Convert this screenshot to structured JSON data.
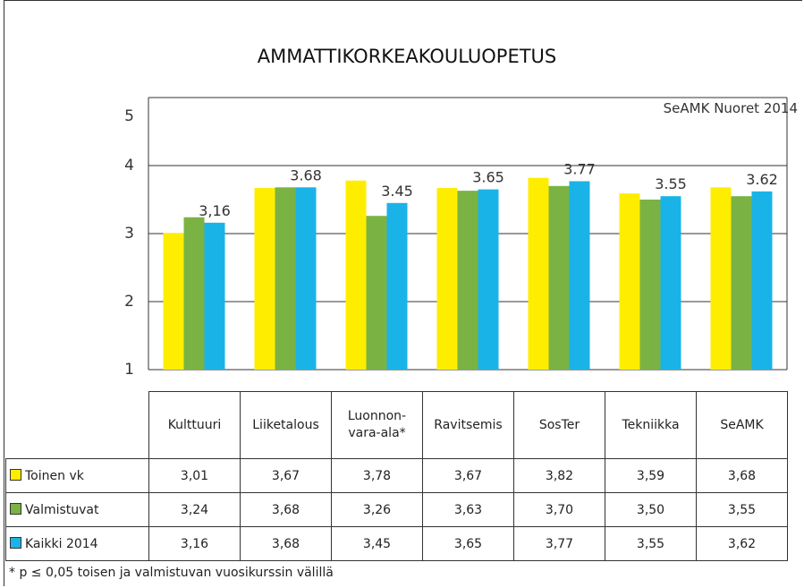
{
  "chart_data": {
    "type": "bar",
    "title": "AMMATTIKORKEAKOULUOPETUS",
    "subtitle": "SeAMK Nuoret 2014",
    "categories": [
      "Kulttuuri",
      "Liiketalous",
      "Luonnon-vara-ala*",
      "Ravitsemis",
      "SosTer",
      "Tekniikka",
      "SeAMK"
    ],
    "series": [
      {
        "name": "Toinen vk",
        "color": "#ffed00",
        "values": [
          3.01,
          3.67,
          3.78,
          3.67,
          3.82,
          3.59,
          3.68
        ],
        "value_labels": [
          "3,01",
          "3,67",
          "3,78",
          "3,67",
          "3,82",
          "3,59",
          "3,68"
        ]
      },
      {
        "name": "Valmistuvat",
        "color": "#7ab344",
        "values": [
          3.24,
          3.68,
          3.26,
          3.63,
          3.7,
          3.5,
          3.55
        ],
        "value_labels": [
          "3,24",
          "3,68",
          "3,26",
          "3,63",
          "3,70",
          "3,50",
          "3,55"
        ]
      },
      {
        "name": "Kaikki 2014",
        "color": "#1ab3e8",
        "values": [
          3.16,
          3.68,
          3.45,
          3.65,
          3.77,
          3.55,
          3.62
        ],
        "value_labels": [
          "3,16",
          "3,68",
          "3,45",
          "3,65",
          "3,77",
          "3,55",
          "3,62"
        ],
        "data_labels": [
          "3,16",
          "3.68",
          "3.45",
          "3.65",
          "3.77",
          "3.55",
          "3.62"
        ]
      }
    ],
    "ylim": [
      1,
      5
    ],
    "yticks": [
      1,
      2,
      3,
      4,
      5
    ],
    "grid": true,
    "footnote": "* p ≤ 0,05 toisen ja valmistuvan vuosikurssin välillä"
  }
}
